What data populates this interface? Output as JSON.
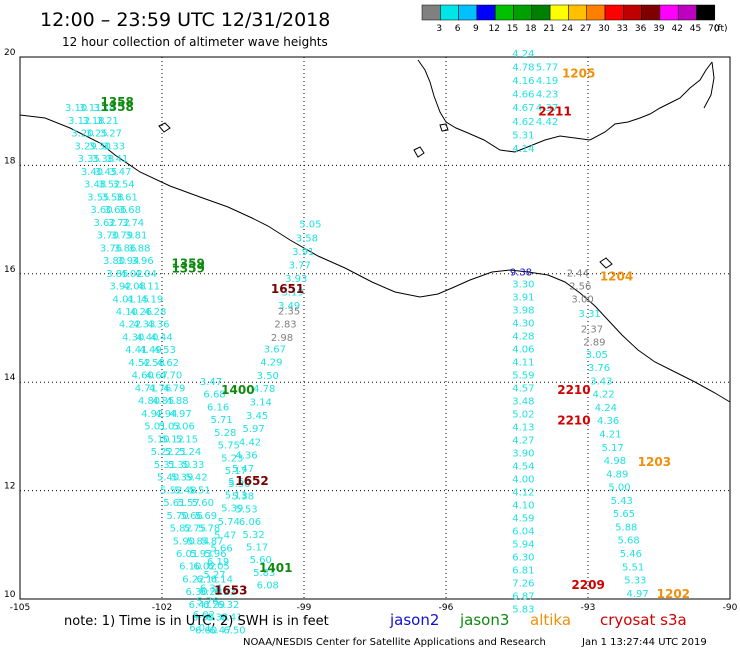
{
  "header": {
    "title": "12:00 – 23:59 UTC 12/31/2018",
    "subtitle": "12 hour collection of altimeter wave heights"
  },
  "colors": {
    "cyan": "#1fe3e3",
    "green": "#0f8a0f",
    "orange": "#f0900a",
    "darkred": "#7a0000",
    "red": "#d00000",
    "gray": "#808080",
    "blue": "#1010d0"
  },
  "scale": {
    "unit": "(ft)",
    "bins": [
      {
        "label": "3",
        "color": "#808080"
      },
      {
        "label": "6",
        "color": "#00e5e5"
      },
      {
        "label": "9",
        "color": "#00c0ff"
      },
      {
        "label": "12",
        "color": "#0000ff"
      },
      {
        "label": "15",
        "color": "#00c000"
      },
      {
        "label": "18",
        "color": "#00a000"
      },
      {
        "label": "21",
        "color": "#008000"
      },
      {
        "label": "24",
        "color": "#ffff00"
      },
      {
        "label": "27",
        "color": "#ffc000"
      },
      {
        "label": "30",
        "color": "#ff8000"
      },
      {
        "label": "33",
        "color": "#ff0000"
      },
      {
        "label": "36",
        "color": "#c00000"
      },
      {
        "label": "39",
        "color": "#800000"
      },
      {
        "label": "42",
        "color": "#ff00ff"
      },
      {
        "label": "45",
        "color": "#c000c0"
      },
      {
        "label": "70",
        "color": "#000000"
      }
    ]
  },
  "map": {
    "x_ticks": [
      "-105",
      "-102",
      "-99",
      "-96",
      "-93",
      "-90"
    ],
    "y_ticks": [
      "20",
      "18",
      "16",
      "14",
      "12",
      "10"
    ]
  },
  "tracks": [
    {
      "name": "west-track-1",
      "color_key": "cyan",
      "start_lon": -104.05,
      "start_lat": 19.0,
      "lon_step": 0.067,
      "lat_step": -0.235,
      "values": [
        "3.10",
        "3.12",
        "3.20",
        "3.29",
        "3.35",
        "3.40",
        "3.48",
        "3.55",
        "3.60",
        "3.62",
        "3.70",
        "3.76",
        "3.80",
        "3.85",
        "3.92",
        "4.01",
        "4.10",
        "4.22",
        "4.30",
        "4.41",
        "4.52",
        "4.60",
        "4.71",
        "4.80",
        "4.92",
        "5.01",
        "5.10",
        "5.22",
        "5.31",
        "5.40",
        "5.52",
        "5.61",
        "5.70",
        "5.82",
        "5.90",
        "6.01",
        "6.10",
        "6.22",
        "6.30",
        "6.41",
        "6.50",
        "6.60"
      ]
    },
    {
      "name": "west-track-2",
      "color_key": "cyan",
      "start_lon": -103.75,
      "start_lat": 19.0,
      "lon_step": 0.067,
      "lat_step": -0.235,
      "values": [
        "3.11",
        "3.18",
        "3.25",
        "3.30",
        "3.38",
        "3.45",
        "3.52",
        "3.58",
        "3.66",
        "3.72",
        "3.79",
        "3.86",
        "3.94",
        "4.02",
        "4.08",
        "4.15",
        "4.26",
        "4.33",
        "4.40",
        "4.49",
        "4.58",
        "4.67",
        "4.76",
        "4.85",
        "4.94",
        "5.03",
        "5.12",
        "5.21",
        "5.30",
        "5.39",
        "5.48",
        "5.57",
        "5.66",
        "5.75",
        "5.84",
        "5.93",
        "6.02",
        "6.11",
        "6.20",
        "6.29",
        "6.38",
        "6.47"
      ]
    },
    {
      "name": "west-track-3",
      "color_key": "cyan",
      "start_lon": -103.45,
      "start_lat": 19.0,
      "lon_step": 0.067,
      "lat_step": -0.235,
      "values": [
        "3.14",
        "3.21",
        "3.27",
        "3.33",
        "3.41",
        "3.47",
        "3.54",
        "3.61",
        "3.68",
        "3.74",
        "3.81",
        "3.88",
        "3.96",
        "4.04",
        "4.11",
        "4.19",
        "4.28",
        "4.36",
        "4.44",
        "4.53",
        "4.62",
        "4.70",
        "4.79",
        "4.88",
        "4.97",
        "5.06",
        "5.15",
        "5.24",
        "5.33",
        "5.42",
        "5.51",
        "5.60",
        "5.69",
        "5.78",
        "5.87",
        "5.96",
        "6.05",
        "6.14",
        "6.23",
        "6.32",
        "6.41",
        "6.50"
      ]
    },
    {
      "name": "central-west-lower",
      "color_key": "cyan",
      "start_lon": -101.2,
      "start_lat": 13.95,
      "lon_step": 0.075,
      "lat_step": -0.235,
      "values": [
        "3.47",
        "6.68",
        "6.16",
        "5.71",
        "5.28",
        "5.75",
        "5.23",
        "5.17",
        "5.30",
        "5.38",
        "5.53",
        "6.06",
        "5.32",
        "5.17",
        "5.60",
        "5.83",
        "6.08"
      ]
    },
    {
      "name": "central-west-right",
      "color_key": "cyan",
      "start_lon": -99.1,
      "start_lat": 16.85,
      "lon_step": -0.075,
      "lat_step": -0.25,
      "values": [
        "5.05",
        "3.58",
        "3.91",
        "3.77",
        "3.93",
        "3.19",
        "3.49"
      ]
    },
    {
      "name": "central-west-gray",
      "color_key": "gray",
      "start_lon": -99.55,
      "start_lat": 15.25,
      "lon_step": -0.075,
      "lat_step": -0.245,
      "values": [
        "2.35",
        "2.83",
        "2.98"
      ]
    },
    {
      "name": "central-west-right-lower",
      "color_key": "cyan",
      "start_lon": -99.85,
      "start_lat": 14.55,
      "lon_step": -0.075,
      "lat_step": -0.245,
      "values": [
        "3.67",
        "4.29",
        "3.50",
        "4.78",
        "3.14",
        "3.45",
        "5.97",
        "4.42",
        "4.36",
        "5.47",
        "5.60",
        "5.13",
        "5.39",
        "5.74",
        "5.47",
        "5.66",
        "6.19",
        "5.27",
        "6.34",
        "5.76",
        "6.02",
        "6.01"
      ]
    },
    {
      "name": "east-north",
      "color_key": "cyan",
      "start_lon": -94.6,
      "start_lat": 20.0,
      "lon_step": 0.0,
      "lat_step": -0.25,
      "values": [
        "4.24",
        "4.78",
        "4.16",
        "4.66",
        "4.67",
        "4.62",
        "5.31",
        "4.14"
      ]
    },
    {
      "name": "east-north-right",
      "color_key": "cyan",
      "start_lon": -94.1,
      "start_lat": 19.75,
      "lon_step": 0.0,
      "lat_step": -0.25,
      "values": [
        "5.77",
        "4.19",
        "4.23",
        "4.37",
        "4.42"
      ]
    },
    {
      "name": "east-left",
      "color_key": "cyan",
      "start_lon": -94.6,
      "start_lat": 15.75,
      "lon_step": 0.0,
      "lat_step": -0.24,
      "values": [
        "3.30",
        "3.91",
        "3.98",
        "4.30",
        "4.28",
        "4.06",
        "4.11",
        "5.59",
        "4.57",
        "3.48",
        "5.02",
        "4.13",
        "4.27",
        "3.90",
        "4.54",
        "4.00",
        "4.12",
        "4.10",
        "4.59",
        "6.04",
        "5.94",
        "6.30",
        "6.81",
        "7.26",
        "6.87",
        "5.83"
      ]
    },
    {
      "name": "east-left-blue",
      "color_key": "blue",
      "start_lon": -94.65,
      "start_lat": 15.97,
      "lon_step": 0.0,
      "lat_step": 0,
      "values": [
        "9.38"
      ]
    },
    {
      "name": "east-gray",
      "color_key": "gray",
      "start_lon": -93.45,
      "start_lat": 15.95,
      "lon_step": 0.05,
      "lat_step": -0.24,
      "values": [
        "2.44",
        "2.56",
        "3.00"
      ]
    },
    {
      "name": "east-right",
      "color_key": "cyan",
      "start_lon": -93.2,
      "start_lat": 15.2,
      "lon_step": 0.05,
      "lat_step": -0.24,
      "values": [
        "3.31"
      ]
    },
    {
      "name": "east-right-gray2",
      "color_key": "gray",
      "start_lon": -93.15,
      "start_lat": 14.92,
      "lon_step": 0.05,
      "lat_step": -0.24,
      "values": [
        "2.37",
        "2.89"
      ]
    },
    {
      "name": "east-right-lower",
      "color_key": "cyan",
      "start_lon": -93.05,
      "start_lat": 14.45,
      "lon_step": 0.048,
      "lat_step": -0.245,
      "values": [
        "3.05",
        "3.76",
        "3.43",
        "4.22",
        "4.24",
        "4.36",
        "4.21",
        "5.17",
        "4.98",
        "4.89",
        "5.00",
        "5.43",
        "5.65",
        "5.88",
        "5.68",
        "5.46",
        "5.51",
        "5.33",
        "4.97"
      ]
    }
  ],
  "time_labels": [
    {
      "text": "1358",
      "color_key": "green",
      "lon": -103.3,
      "lat": 19.1
    },
    {
      "text": "1358",
      "color_key": "green",
      "lon": -103.3,
      "lat": 19.0
    },
    {
      "text": "1359",
      "color_key": "green",
      "lon": -101.8,
      "lat": 16.12
    },
    {
      "text": "1359",
      "color_key": "green",
      "lon": -101.8,
      "lat": 16.02
    },
    {
      "text": "1651",
      "color_key": "darkred",
      "lon": -99.7,
      "lat": 15.65
    },
    {
      "text": "1400",
      "color_key": "green",
      "lon": -100.75,
      "lat": 13.78
    },
    {
      "text": "1652",
      "color_key": "darkred",
      "lon": -100.45,
      "lat": 12.1
    },
    {
      "text": "1401",
      "color_key": "green",
      "lon": -99.95,
      "lat": 10.5
    },
    {
      "text": "1653",
      "color_key": "darkred",
      "lon": -100.9,
      "lat": 10.08
    },
    {
      "text": "1205",
      "color_key": "orange",
      "lon": -93.55,
      "lat": 19.62
    },
    {
      "text": "2211",
      "color_key": "red",
      "lon": -94.05,
      "lat": 18.92
    },
    {
      "text": "1204",
      "color_key": "orange",
      "lon": -92.75,
      "lat": 15.88
    },
    {
      "text": "2210",
      "color_key": "red",
      "lon": -93.65,
      "lat": 13.78
    },
    {
      "text": "2210",
      "color_key": "red",
      "lon": -93.65,
      "lat": 13.22
    },
    {
      "text": "1203",
      "color_key": "orange",
      "lon": -91.95,
      "lat": 12.45
    },
    {
      "text": "2209",
      "color_key": "red",
      "lon": -93.35,
      "lat": 10.18
    },
    {
      "text": "1202",
      "color_key": "orange",
      "lon": -91.55,
      "lat": 10.02
    }
  ],
  "footer": {
    "note": "note: 1) Time is in UTC; 2) SWH is in feet",
    "legend": [
      {
        "label": "jason2",
        "color": "#1010d0"
      },
      {
        "label": "jason3",
        "color": "#0f8a0f"
      },
      {
        "label": "altika",
        "color": "#f0900a"
      },
      {
        "label": "cryosat s3a",
        "color": "#d00000"
      }
    ],
    "credit": "NOAA/NESDIS Center for Satellite Applications and Research",
    "timestamp": "Jan  1 13:27:44 UTC 2019"
  }
}
